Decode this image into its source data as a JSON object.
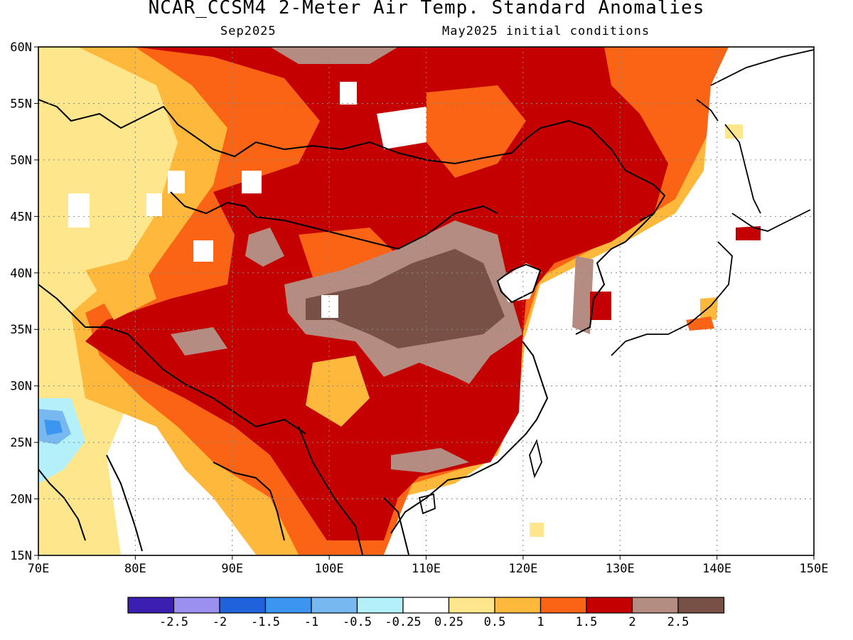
{
  "title": "NCAR_CCSM4 2-Meter Air Temp. Standard Anomalies",
  "subtitle_left": "Sep2025",
  "subtitle_right": "May2025 initial conditions",
  "map": {
    "lon_range": [
      70,
      150
    ],
    "lat_range": [
      15,
      60
    ],
    "lon_ticks": [
      "70E",
      "80E",
      "90E",
      "100E",
      "110E",
      "120E",
      "130E",
      "140E",
      "150E"
    ],
    "lat_ticks": [
      "15N",
      "20N",
      "25N",
      "30N",
      "35N",
      "40N",
      "45N",
      "50N",
      "55N",
      "60N"
    ],
    "grid": "dotted"
  },
  "colorbar": {
    "colors": [
      "#3c1fb0",
      "#9b8ff0",
      "#1f62dc",
      "#3c96f0",
      "#78b8f0",
      "#b4f0fa",
      "#ffffff",
      "#fee68c",
      "#feb93c",
      "#fa6414",
      "#c40000",
      "#b48c82",
      "#785046"
    ],
    "labels": [
      "-2.5",
      "-2",
      "-1.5",
      "-1",
      "-0.5",
      "-0.25",
      "0.25",
      "0.5",
      "1",
      "1.5",
      "2",
      "2.5"
    ]
  },
  "colors": {
    "land_outline": "#000000",
    "ocean": "#ffffff"
  }
}
